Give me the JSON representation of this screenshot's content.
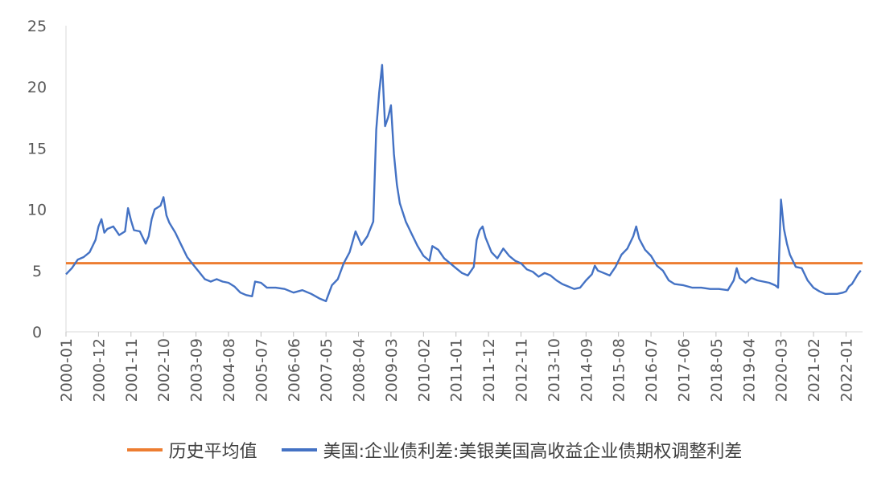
{
  "chart_data": {
    "type": "line",
    "title": "",
    "xlabel": "",
    "ylabel": "",
    "ylim": [
      0,
      25
    ],
    "yticks": [
      0,
      5,
      10,
      15,
      20,
      25
    ],
    "x_tick_labels": [
      "2000-01",
      "2000-12",
      "2001-11",
      "2002-10",
      "2003-09",
      "2004-08",
      "2005-07",
      "2006-06",
      "2007-05",
      "2008-04",
      "2009-03",
      "2010-02",
      "2011-01",
      "2011-12",
      "2012-11",
      "2013-10",
      "2014-09",
      "2015-08",
      "2016-07",
      "2017-06",
      "2018-05",
      "2019-04",
      "2020-03",
      "2021-02",
      "2022-01"
    ],
    "grid": false,
    "legend_position": "bottom",
    "series": [
      {
        "name": "历史平均值",
        "color": "#ED7D31",
        "values": [
          5.6,
          5.6
        ]
      },
      {
        "name": "美国:企业债利差:美银美国高收益企业债期权调整利差",
        "color": "#4472C4",
        "points": [
          [
            "2000-01",
            4.7
          ],
          [
            "2000-03",
            5.2
          ],
          [
            "2000-05",
            5.9
          ],
          [
            "2000-07",
            6.1
          ],
          [
            "2000-09",
            6.5
          ],
          [
            "2000-11",
            7.5
          ],
          [
            "2000-12",
            8.6
          ],
          [
            "2001-01",
            9.2
          ],
          [
            "2001-02",
            8.1
          ],
          [
            "2001-03",
            8.4
          ],
          [
            "2001-05",
            8.6
          ],
          [
            "2001-07",
            7.9
          ],
          [
            "2001-09",
            8.2
          ],
          [
            "2001-10",
            10.1
          ],
          [
            "2001-11",
            9.1
          ],
          [
            "2001-12",
            8.3
          ],
          [
            "2002-02",
            8.2
          ],
          [
            "2002-04",
            7.2
          ],
          [
            "2002-05",
            7.8
          ],
          [
            "2002-06",
            9.2
          ],
          [
            "2002-07",
            10.0
          ],
          [
            "2002-09",
            10.3
          ],
          [
            "2002-10",
            11.0
          ],
          [
            "2002-11",
            9.5
          ],
          [
            "2002-12",
            8.9
          ],
          [
            "2003-02",
            8.1
          ],
          [
            "2003-04",
            7.1
          ],
          [
            "2003-06",
            6.1
          ],
          [
            "2003-08",
            5.5
          ],
          [
            "2003-10",
            4.9
          ],
          [
            "2003-12",
            4.3
          ],
          [
            "2004-02",
            4.1
          ],
          [
            "2004-04",
            4.3
          ],
          [
            "2004-06",
            4.1
          ],
          [
            "2004-08",
            4.0
          ],
          [
            "2004-10",
            3.7
          ],
          [
            "2004-12",
            3.2
          ],
          [
            "2005-02",
            3.0
          ],
          [
            "2005-04",
            2.9
          ],
          [
            "2005-05",
            4.1
          ],
          [
            "2005-07",
            4.0
          ],
          [
            "2005-09",
            3.6
          ],
          [
            "2005-12",
            3.6
          ],
          [
            "2006-03",
            3.5
          ],
          [
            "2006-06",
            3.2
          ],
          [
            "2006-09",
            3.4
          ],
          [
            "2006-12",
            3.1
          ],
          [
            "2007-03",
            2.7
          ],
          [
            "2007-05",
            2.5
          ],
          [
            "2007-07",
            3.8
          ],
          [
            "2007-09",
            4.3
          ],
          [
            "2007-11",
            5.6
          ],
          [
            "2008-01",
            6.5
          ],
          [
            "2008-03",
            8.2
          ],
          [
            "2008-05",
            7.1
          ],
          [
            "2008-07",
            7.8
          ],
          [
            "2008-09",
            9.0
          ],
          [
            "2008-10",
            16.5
          ],
          [
            "2008-11",
            19.5
          ],
          [
            "2008-12",
            21.8
          ],
          [
            "2009-01",
            16.8
          ],
          [
            "2009-02",
            17.5
          ],
          [
            "2009-03",
            18.5
          ],
          [
            "2009-04",
            14.5
          ],
          [
            "2009-05",
            12.0
          ],
          [
            "2009-06",
            10.5
          ],
          [
            "2009-08",
            9.0
          ],
          [
            "2009-10",
            8.0
          ],
          [
            "2009-12",
            7.0
          ],
          [
            "2010-02",
            6.2
          ],
          [
            "2010-04",
            5.8
          ],
          [
            "2010-05",
            7.0
          ],
          [
            "2010-07",
            6.7
          ],
          [
            "2010-09",
            6.0
          ],
          [
            "2010-11",
            5.6
          ],
          [
            "2011-01",
            5.2
          ],
          [
            "2011-03",
            4.8
          ],
          [
            "2011-05",
            4.6
          ],
          [
            "2011-07",
            5.3
          ],
          [
            "2011-08",
            7.5
          ],
          [
            "2011-09",
            8.3
          ],
          [
            "2011-10",
            8.6
          ],
          [
            "2011-11",
            7.7
          ],
          [
            "2012-01",
            6.5
          ],
          [
            "2012-03",
            6.0
          ],
          [
            "2012-05",
            6.8
          ],
          [
            "2012-07",
            6.2
          ],
          [
            "2012-09",
            5.8
          ],
          [
            "2012-11",
            5.6
          ],
          [
            "2013-01",
            5.1
          ],
          [
            "2013-03",
            4.9
          ],
          [
            "2013-05",
            4.5
          ],
          [
            "2013-07",
            4.8
          ],
          [
            "2013-09",
            4.6
          ],
          [
            "2013-11",
            4.2
          ],
          [
            "2014-01",
            3.9
          ],
          [
            "2014-03",
            3.7
          ],
          [
            "2014-05",
            3.5
          ],
          [
            "2014-07",
            3.6
          ],
          [
            "2014-09",
            4.2
          ],
          [
            "2014-11",
            4.7
          ],
          [
            "2014-12",
            5.4
          ],
          [
            "2015-01",
            5.0
          ],
          [
            "2015-03",
            4.8
          ],
          [
            "2015-05",
            4.6
          ],
          [
            "2015-07",
            5.3
          ],
          [
            "2015-09",
            6.3
          ],
          [
            "2015-11",
            6.8
          ],
          [
            "2016-01",
            7.8
          ],
          [
            "2016-02",
            8.6
          ],
          [
            "2016-03",
            7.6
          ],
          [
            "2016-05",
            6.7
          ],
          [
            "2016-07",
            6.2
          ],
          [
            "2016-09",
            5.4
          ],
          [
            "2016-11",
            5.0
          ],
          [
            "2017-01",
            4.2
          ],
          [
            "2017-03",
            3.9
          ],
          [
            "2017-06",
            3.8
          ],
          [
            "2017-09",
            3.6
          ],
          [
            "2017-12",
            3.6
          ],
          [
            "2018-03",
            3.5
          ],
          [
            "2018-06",
            3.5
          ],
          [
            "2018-09",
            3.4
          ],
          [
            "2018-11",
            4.2
          ],
          [
            "2018-12",
            5.2
          ],
          [
            "2019-01",
            4.4
          ],
          [
            "2019-03",
            4.0
          ],
          [
            "2019-05",
            4.4
          ],
          [
            "2019-07",
            4.2
          ],
          [
            "2019-09",
            4.1
          ],
          [
            "2019-11",
            4.0
          ],
          [
            "2020-01",
            3.8
          ],
          [
            "2020-02",
            3.6
          ],
          [
            "2020-03",
            10.8
          ],
          [
            "2020-04",
            8.4
          ],
          [
            "2020-05",
            7.2
          ],
          [
            "2020-06",
            6.3
          ],
          [
            "2020-08",
            5.3
          ],
          [
            "2020-10",
            5.2
          ],
          [
            "2020-12",
            4.2
          ],
          [
            "2021-02",
            3.6
          ],
          [
            "2021-04",
            3.3
          ],
          [
            "2021-06",
            3.1
          ],
          [
            "2021-08",
            3.1
          ],
          [
            "2021-10",
            3.1
          ],
          [
            "2021-12",
            3.2
          ],
          [
            "2022-01",
            3.3
          ],
          [
            "2022-02",
            3.7
          ],
          [
            "2022-03",
            3.9
          ],
          [
            "2022-04",
            4.3
          ],
          [
            "2022-05",
            4.7
          ],
          [
            "2022-06",
            5.0
          ]
        ]
      }
    ]
  }
}
